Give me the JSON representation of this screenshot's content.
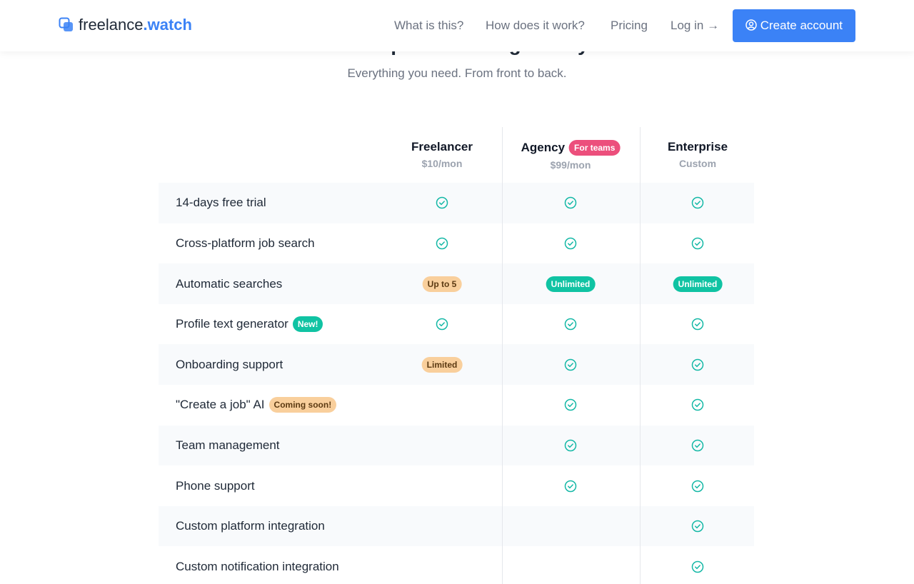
{
  "header": {
    "logo": {
      "main": "freelance",
      "accent": ".watch"
    },
    "nav": [
      "What is this?",
      "How does it work?",
      "Pricing",
      "Log in"
    ],
    "cta": "Create account"
  },
  "hero": {
    "title": "Choose a plan that's right for you.",
    "subtitle": "Everything you need. From front to back."
  },
  "plans": [
    {
      "name": "Freelancer",
      "price": "$10/mon"
    },
    {
      "name": "Agency",
      "price": "$99/mon",
      "badge": "For teams"
    },
    {
      "name": "Enterprise",
      "price": "Custom"
    }
  ],
  "rows": [
    {
      "feature": "14-days free trial",
      "cells": [
        true,
        true,
        true
      ]
    },
    {
      "feature": "Cross-platform job search",
      "cells": [
        true,
        true,
        true
      ]
    },
    {
      "feature": "Automatic searches",
      "cells": [
        "Up to 5",
        "Unlimited",
        "Unlimited"
      ]
    },
    {
      "feature": "Profile text generator",
      "badge": "New!",
      "cells": [
        true,
        true,
        true
      ]
    },
    {
      "feature": "Onboarding support",
      "cells": [
        "Limited",
        true,
        true
      ]
    },
    {
      "feature": "\"Create a job\" AI",
      "badge": "Coming soon!",
      "cells": [
        false,
        true,
        true
      ]
    },
    {
      "feature": "Team management",
      "cells": [
        false,
        true,
        true
      ]
    },
    {
      "feature": "Phone support",
      "cells": [
        false,
        true,
        true
      ]
    },
    {
      "feature": "Custom platform integration",
      "cells": [
        false,
        false,
        true
      ]
    },
    {
      "feature": "Custom notification integration",
      "cells": [
        false,
        false,
        true
      ]
    }
  ]
}
